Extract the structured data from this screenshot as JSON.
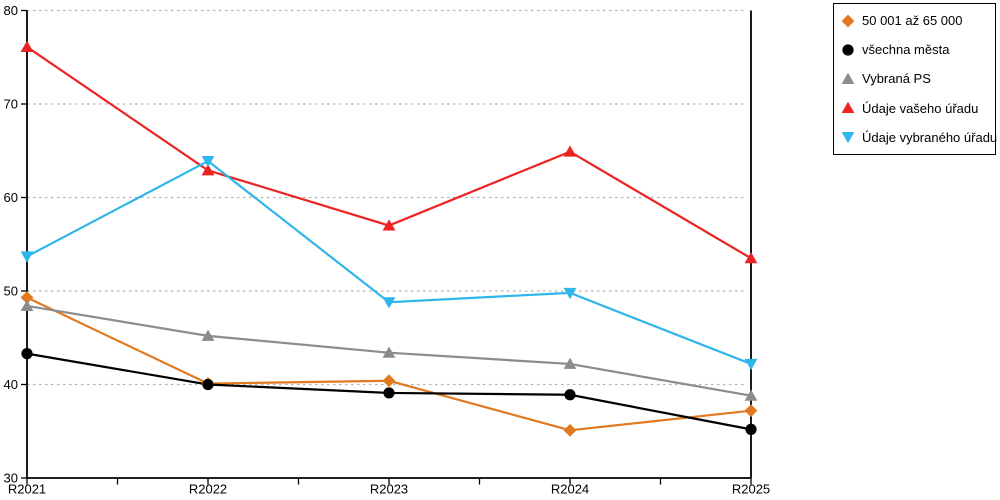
{
  "chart_data": {
    "type": "line",
    "title": "",
    "xlabel": "",
    "ylabel": "",
    "categories": [
      "R2021",
      "R2022",
      "R2023",
      "R2024",
      "R2025"
    ],
    "yticks": [
      30,
      40,
      50,
      60,
      70,
      80
    ],
    "ylim": [
      30,
      80
    ],
    "grid": "horizontal-dotted",
    "gridline_color": "#b3b3b3",
    "axis_color": "#000000",
    "legend_position": "outside-top-right",
    "series": [
      {
        "name": "50 001 až 65 000",
        "marker": "diamond",
        "color": "#e0791f",
        "values": [
          49.3,
          40.1,
          40.4,
          35.1,
          37.2
        ]
      },
      {
        "name": "všechna města",
        "marker": "circle",
        "color": "#000000",
        "values": [
          43.3,
          40.0,
          39.1,
          38.9,
          35.2
        ]
      },
      {
        "name": "Vybraná PS",
        "marker": "triangle-up",
        "color": "#8c8c8c",
        "values": [
          48.4,
          45.2,
          43.4,
          42.2,
          38.8
        ]
      },
      {
        "name": "Údaje vašeho úřadu",
        "marker": "triangle-up",
        "color": "#ed2222",
        "values": [
          76.1,
          62.9,
          57.0,
          64.9,
          53.5
        ]
      },
      {
        "name": "Údaje vybraného úřadu",
        "marker": "triangle-down",
        "color": "#2eb6ea",
        "values": [
          53.7,
          63.9,
          48.8,
          49.8,
          42.2
        ]
      }
    ]
  }
}
